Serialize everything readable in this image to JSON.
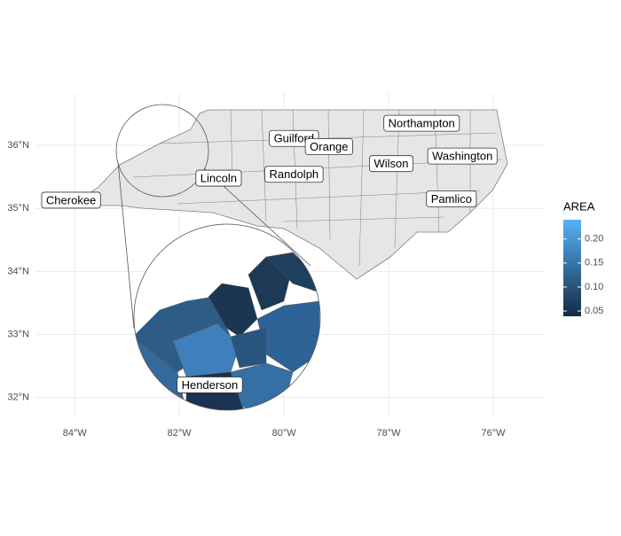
{
  "chart_data": {
    "type": "map",
    "xlim": [
      -84.75,
      -75
    ],
    "ylim": [
      31.7,
      36.83
    ],
    "xticks": [
      {
        "value": -84,
        "label": "84°W"
      },
      {
        "value": -82,
        "label": "82°W"
      },
      {
        "value": -80,
        "label": "80°W"
      },
      {
        "value": -78,
        "label": "78°W"
      },
      {
        "value": -76,
        "label": "76°W"
      }
    ],
    "yticks": [
      {
        "value": 32,
        "label": "32°N"
      },
      {
        "value": 33,
        "label": "33°N"
      },
      {
        "value": 34,
        "label": "34°N"
      },
      {
        "value": 35,
        "label": "35°N"
      },
      {
        "value": 36,
        "label": "36°N"
      }
    ],
    "grid": true,
    "labels": [
      {
        "name": "Cherokee",
        "x": -84.07,
        "y": 35.13
      },
      {
        "name": "Lincoln",
        "x": -81.25,
        "y": 35.48
      },
      {
        "name": "Henderson",
        "x": -81.42,
        "y": 32.2
      },
      {
        "name": "Guilford",
        "x": -79.81,
        "y": 36.11
      },
      {
        "name": "Orange",
        "x": -79.14,
        "y": 35.98
      },
      {
        "name": "Randolph",
        "x": -79.81,
        "y": 35.54
      },
      {
        "name": "Northampton",
        "x": -77.37,
        "y": 36.35
      },
      {
        "name": "Wilson",
        "x": -77.95,
        "y": 35.71
      },
      {
        "name": "Washington",
        "x": -76.59,
        "y": 35.83
      },
      {
        "name": "Pamlico",
        "x": -76.8,
        "y": 35.15
      }
    ],
    "legend": {
      "title": "AREA",
      "lim": [
        0.039,
        0.24
      ],
      "colors": [
        "#132B43",
        "#56B1F7"
      ],
      "ticks": [
        0.05,
        {
          "value": 0.1,
          "label": "0.10"
        },
        0.15,
        {
          "value": 0.2,
          "label": "0.20"
        }
      ]
    }
  }
}
